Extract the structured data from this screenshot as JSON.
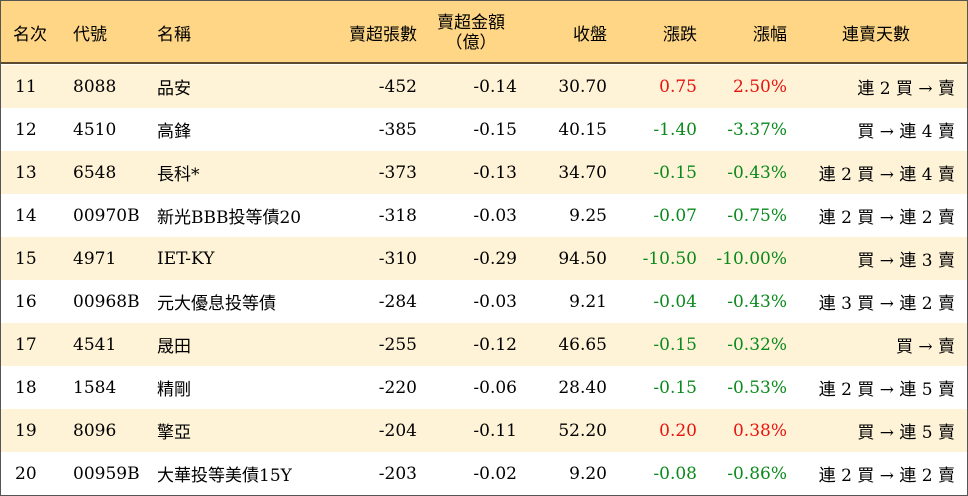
{
  "header": {
    "rank": "名次",
    "code": "代號",
    "name": "名稱",
    "net_sell_lots": "賣超張數",
    "net_sell_amount_line1": "賣超金額",
    "net_sell_amount_line2": "（億）",
    "close": "收盤",
    "change": "漲跌",
    "change_pct": "漲幅",
    "streak": "連賣天數"
  },
  "colors": {
    "header_bg": "#fed685",
    "band_bg": "#fef2d7",
    "up": "#e8140f",
    "down": "#0a8a1c"
  },
  "rows": [
    {
      "rank": "11",
      "code": "8088",
      "name": "品安",
      "lots": "-452",
      "amount": "-0.14",
      "close": "30.70",
      "change": "0.75",
      "pct": "2.50%",
      "direction": "up",
      "streak": "連 2 買 → 賣"
    },
    {
      "rank": "12",
      "code": "4510",
      "name": "高鋒",
      "lots": "-385",
      "amount": "-0.15",
      "close": "40.15",
      "change": "-1.40",
      "pct": "-3.37%",
      "direction": "down",
      "streak": "買 → 連 4 賣"
    },
    {
      "rank": "13",
      "code": "6548",
      "name": "長科*",
      "lots": "-373",
      "amount": "-0.13",
      "close": "34.70",
      "change": "-0.15",
      "pct": "-0.43%",
      "direction": "down",
      "streak": "連 2 買 → 連 4 賣"
    },
    {
      "rank": "14",
      "code": "00970B",
      "name": "新光BBB投等債20",
      "lots": "-318",
      "amount": "-0.03",
      "close": "9.25",
      "change": "-0.07",
      "pct": "-0.75%",
      "direction": "down",
      "streak": "連 2 買 → 連 2 賣"
    },
    {
      "rank": "15",
      "code": "4971",
      "name": "IET-KY",
      "lots": "-310",
      "amount": "-0.29",
      "close": "94.50",
      "change": "-10.50",
      "pct": "-10.00%",
      "direction": "down",
      "streak": "買 → 連 3 賣"
    },
    {
      "rank": "16",
      "code": "00968B",
      "name": "元大優息投等債",
      "lots": "-284",
      "amount": "-0.03",
      "close": "9.21",
      "change": "-0.04",
      "pct": "-0.43%",
      "direction": "down",
      "streak": "連 3 買 → 連 2 賣"
    },
    {
      "rank": "17",
      "code": "4541",
      "name": "晟田",
      "lots": "-255",
      "amount": "-0.12",
      "close": "46.65",
      "change": "-0.15",
      "pct": "-0.32%",
      "direction": "down",
      "streak": "買 → 賣"
    },
    {
      "rank": "18",
      "code": "1584",
      "name": "精剛",
      "lots": "-220",
      "amount": "-0.06",
      "close": "28.40",
      "change": "-0.15",
      "pct": "-0.53%",
      "direction": "down",
      "streak": "連 2 買 → 連 5 賣"
    },
    {
      "rank": "19",
      "code": "8096",
      "name": "擎亞",
      "lots": "-204",
      "amount": "-0.11",
      "close": "52.20",
      "change": "0.20",
      "pct": "0.38%",
      "direction": "up",
      "streak": "買 → 連 5 賣"
    },
    {
      "rank": "20",
      "code": "00959B",
      "name": "大華投等美債15Y",
      "lots": "-203",
      "amount": "-0.02",
      "close": "9.20",
      "change": "-0.08",
      "pct": "-0.86%",
      "direction": "down",
      "streak": "連 2 買 → 連 2 賣"
    }
  ]
}
